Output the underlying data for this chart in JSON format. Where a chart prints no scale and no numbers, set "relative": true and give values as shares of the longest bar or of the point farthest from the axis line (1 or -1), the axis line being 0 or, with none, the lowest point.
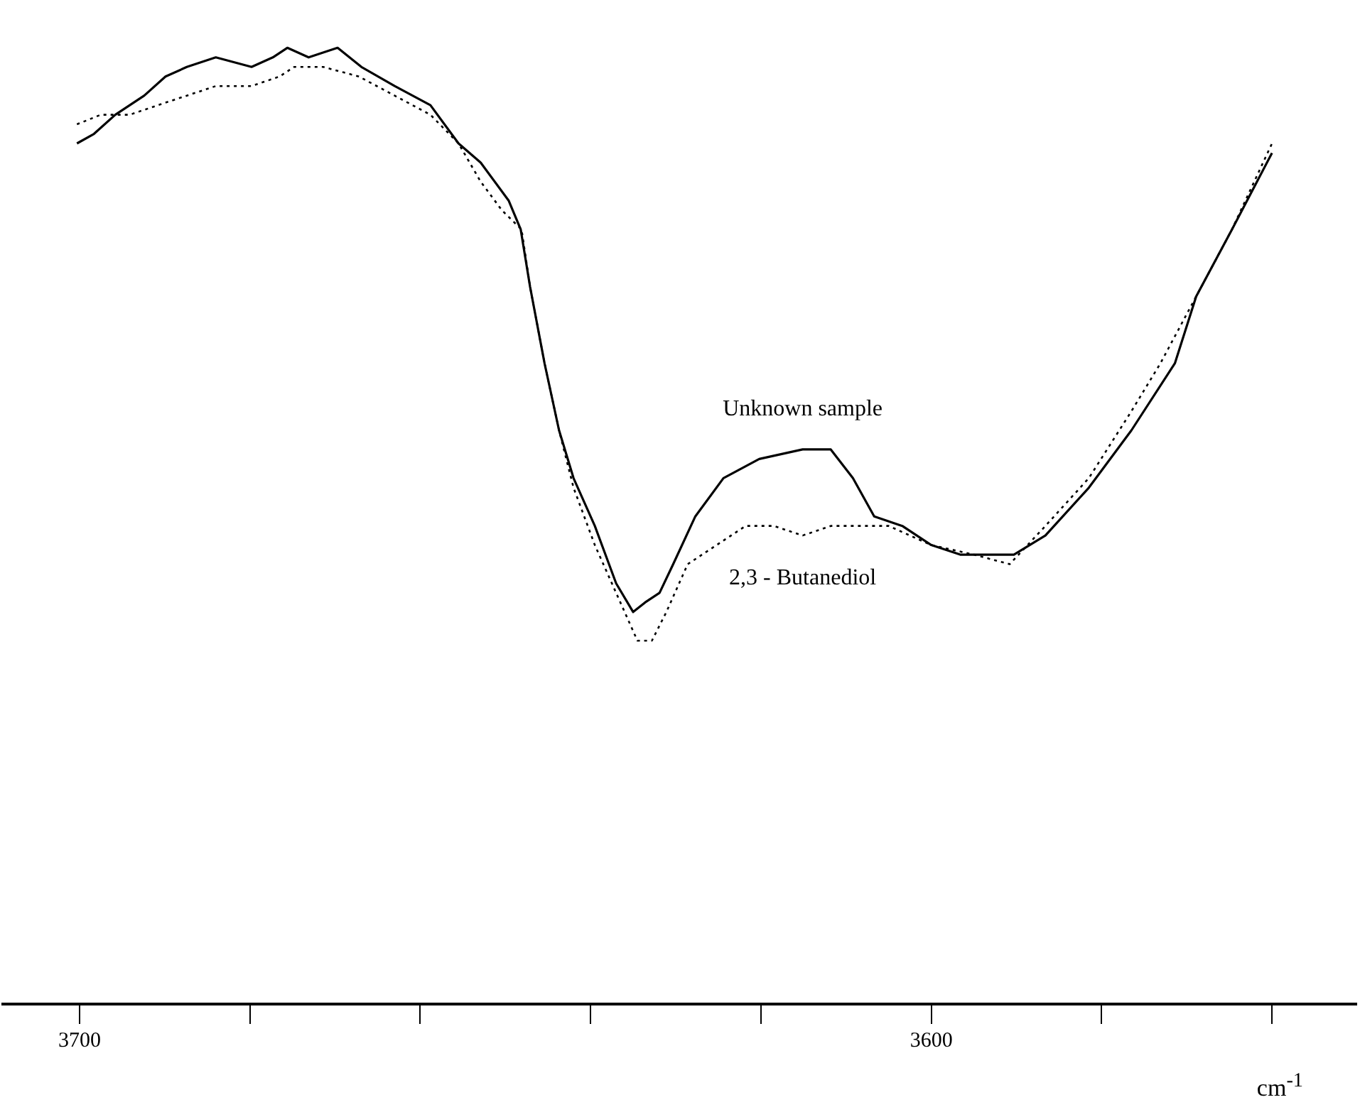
{
  "chart_data": {
    "type": "line",
    "relative": true,
    "xlabel": "cm$^{-1}$",
    "xlim": [
      3709,
      3550
    ],
    "xticks": [
      3700,
      {
        "value": 3680,
        "label": null
      },
      {
        "value": 3660,
        "label": null
      },
      {
        "value": 3640,
        "label": null
      },
      {
        "value": 3620,
        "label": null
      },
      3600,
      {
        "value": 3580,
        "label": null
      },
      {
        "value": 3560,
        "label": null
      }
    ],
    "series": [
      {
        "name": "Unknown sample",
        "color": "#000000",
        "line_style": "solid",
        "x": [
          3700.3,
          3698.3,
          3695.8,
          3692.4,
          3689.9,
          3687.4,
          3684.0,
          3679.8,
          3677.3,
          3675.6,
          3673.1,
          3669.7,
          3666.9,
          3663.0,
          3658.8,
          3655.5,
          3652.9,
          3649.6,
          3648.2,
          3647.1,
          3645.4,
          3643.7,
          3642.0,
          3639.5,
          3637.0,
          3635.0,
          3633.6,
          3631.9,
          3630.3,
          3627.7,
          3624.4,
          3620.2,
          3615.1,
          3611.8,
          3609.2,
          3606.7,
          3603.4,
          3600.0,
          3596.6,
          3593.3,
          3590.3,
          3586.6,
          3581.5,
          3576.5,
          3571.4,
          3568.9,
          3564.7,
          3560.0
        ],
        "values": [
          0.9,
          0.91,
          0.93,
          0.95,
          0.97,
          0.98,
          0.99,
          0.98,
          0.99,
          1.0,
          0.99,
          1.0,
          0.98,
          0.96,
          0.94,
          0.9,
          0.88,
          0.84,
          0.81,
          0.75,
          0.67,
          0.6,
          0.55,
          0.5,
          0.44,
          0.41,
          0.42,
          0.43,
          0.46,
          0.51,
          0.55,
          0.57,
          0.58,
          0.58,
          0.55,
          0.51,
          0.5,
          0.48,
          0.47,
          0.47,
          0.47,
          0.49,
          0.54,
          0.6,
          0.67,
          0.74,
          0.81,
          0.89
        ]
      },
      {
        "name": "2,3 - Butanediol",
        "color": "#000000",
        "line_style": "dotted",
        "x": [
          3700.3,
          3697.5,
          3694.1,
          3690.8,
          3687.4,
          3684.0,
          3679.8,
          3676.5,
          3674.8,
          3671.4,
          3667.2,
          3663.0,
          3658.8,
          3655.5,
          3652.9,
          3650.4,
          3648.1,
          3647.1,
          3645.4,
          3643.7,
          3642.0,
          3639.5,
          3637.0,
          3634.5,
          3632.8,
          3631.1,
          3628.6,
          3625.2,
          3621.8,
          3618.5,
          3615.1,
          3611.8,
          3608.4,
          3605.0,
          3600.0,
          3595.0,
          3590.8,
          3586.6,
          3581.5,
          3576.5,
          3573.1,
          3568.9,
          3564.7,
          3560.0
        ],
        "values": [
          0.92,
          0.93,
          0.93,
          0.94,
          0.95,
          0.96,
          0.96,
          0.97,
          0.98,
          0.98,
          0.97,
          0.95,
          0.93,
          0.9,
          0.86,
          0.83,
          0.81,
          0.75,
          0.67,
          0.6,
          0.54,
          0.48,
          0.43,
          0.38,
          0.38,
          0.41,
          0.46,
          0.48,
          0.5,
          0.5,
          0.49,
          0.5,
          0.5,
          0.5,
          0.48,
          0.47,
          0.46,
          0.5,
          0.55,
          0.62,
          0.67,
          0.74,
          0.81,
          0.9
        ]
      }
    ]
  }
}
